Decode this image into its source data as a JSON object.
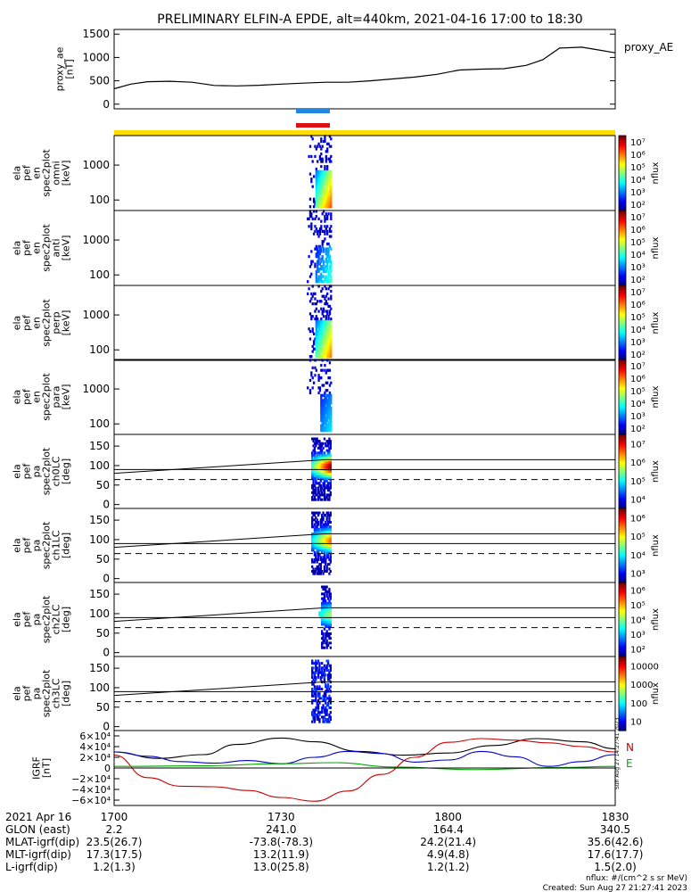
{
  "title": "PRELIMINARY ELFIN-A EPDE, alt=440km, 2021-04-16 17:00 to 18:30",
  "time_range": [
    "17:00",
    "18:30"
  ],
  "chart_data": [
    {
      "type": "line",
      "id": "proxy_ae",
      "ylabel": "proxy_ae\n[nT]",
      "right_label": "proxy_AE",
      "ylim": [
        -100,
        1600
      ],
      "yticks": [
        0,
        500,
        1000,
        1500
      ],
      "x": [
        0,
        3,
        6,
        10,
        14,
        18,
        22,
        26,
        30,
        34,
        38,
        42,
        46,
        50,
        54,
        58,
        62,
        66,
        70,
        74,
        77,
        80,
        84,
        87,
        90
      ],
      "values": [
        330,
        430,
        480,
        490,
        470,
        400,
        390,
        405,
        430,
        450,
        470,
        470,
        500,
        540,
        580,
        640,
        730,
        750,
        760,
        830,
        950,
        1200,
        1220,
        1160,
        1100
      ]
    },
    {
      "type": "heatmap",
      "id": "en_omni",
      "ylabel": "ela\npef\nen\nspec2plot\nomni\n[keV]",
      "yticks": [
        "100",
        "1000"
      ],
      "colorbar": {
        "label": "nflux",
        "ticks": [
          "10²",
          "10³",
          "10⁴",
          "10⁵",
          "10⁶",
          "10⁷"
        ]
      }
    },
    {
      "type": "heatmap",
      "id": "en_anti",
      "ylabel": "ela\npef\nen\nspec2plot\nanti\n[keV]",
      "yticks": [
        "100",
        "1000"
      ],
      "colorbar": {
        "label": "nflux",
        "ticks": [
          "10²",
          "10³",
          "10⁴",
          "10⁵",
          "10⁶",
          "10⁷"
        ]
      }
    },
    {
      "type": "heatmap",
      "id": "en_perp",
      "ylabel": "ela\npef\nen\nspec2plot\nperp\n[keV]",
      "yticks": [
        "100",
        "1000"
      ],
      "colorbar": {
        "label": "nflux",
        "ticks": [
          "10²",
          "10³",
          "10⁴",
          "10⁵",
          "10⁶",
          "10⁷"
        ]
      }
    },
    {
      "type": "heatmap",
      "id": "en_para",
      "ylabel": "ela\npef\nen\nspec2plot\npara\n[keV]",
      "yticks": [
        "100",
        "1000"
      ],
      "colorbar": {
        "label": "nflux",
        "ticks": [
          "10²",
          "10³",
          "10⁴",
          "10⁵",
          "10⁶",
          "10⁷"
        ]
      }
    },
    {
      "type": "heatmap",
      "id": "pa_ch0",
      "ylabel": "ela\npef\npa\nspec2plot\nch0LC\n[deg]",
      "yticks": [
        "0",
        "50",
        "100",
        "150"
      ],
      "colorbar": {
        "label": "nflux",
        "ticks": [
          "10⁴",
          "10⁵",
          "10⁶",
          "10⁷"
        ]
      }
    },
    {
      "type": "heatmap",
      "id": "pa_ch1",
      "ylabel": "ela\npef\npa\nspec2plot\nch1LC\n[deg]",
      "yticks": [
        "0",
        "50",
        "100",
        "150"
      ],
      "colorbar": {
        "label": "nflux",
        "ticks": [
          "10³",
          "10⁴",
          "10⁵",
          "10⁶"
        ]
      }
    },
    {
      "type": "heatmap",
      "id": "pa_ch2",
      "ylabel": "ela\npef\npa\nspec2plot\nch2LC\n[deg]",
      "yticks": [
        "0",
        "50",
        "100",
        "150"
      ],
      "colorbar": {
        "label": "nflux",
        "ticks": [
          "10²",
          "10³",
          "10⁴",
          "10⁵",
          "10⁶"
        ]
      }
    },
    {
      "type": "heatmap",
      "id": "pa_ch3",
      "ylabel": "ela\npef\npa\nspec2plot\nch3LC\n[deg]",
      "yticks": [
        "0",
        "50",
        "100",
        "150"
      ],
      "colorbar": {
        "label": "nflux",
        "ticks": [
          "10",
          "100",
          "1000",
          "10000"
        ]
      }
    },
    {
      "type": "line",
      "id": "igrf",
      "ylabel": "IGRF\n[nT]",
      "yticks": [
        "−6×10⁴",
        "−4×10⁴",
        "−2×10⁴",
        "0",
        "2×10⁴",
        "4×10⁴",
        "6×10⁴"
      ],
      "ylim": [
        -70000,
        70000
      ],
      "legend": [
        "N",
        "E"
      ],
      "series": [
        {
          "color": "#000000",
          "x": [
            0,
            8,
            16,
            22,
            30,
            36,
            44,
            52,
            60,
            68,
            76,
            84,
            90
          ],
          "values": [
            30000,
            18000,
            25000,
            44000,
            56000,
            49000,
            31000,
            24000,
            28000,
            42000,
            55000,
            49000,
            36000
          ]
        },
        {
          "color": "#0000cc",
          "x": [
            0,
            6,
            12,
            18,
            24,
            30,
            36,
            42,
            48,
            54,
            60,
            66,
            72,
            78,
            84,
            90
          ],
          "values": [
            30000,
            22000,
            12000,
            9000,
            14000,
            8000,
            20000,
            31000,
            27000,
            11000,
            15000,
            31000,
            21000,
            3000,
            12000,
            25000
          ]
        },
        {
          "color": "#cc0000",
          "x": [
            0,
            6,
            12,
            18,
            24,
            30,
            36,
            42,
            48,
            54,
            60,
            66,
            72,
            78,
            84,
            90
          ],
          "values": [
            24000,
            -18000,
            -34000,
            -35000,
            -42000,
            -55000,
            -62000,
            -43000,
            -12000,
            20000,
            48000,
            55000,
            52000,
            47000,
            40000,
            30000
          ]
        },
        {
          "color": "#00aa00",
          "x": [
            0,
            15,
            30,
            40,
            50,
            65,
            80,
            90
          ],
          "values": [
            3000,
            4000,
            8000,
            10000,
            2000,
            -3000,
            1000,
            3000
          ]
        }
      ]
    }
  ],
  "orbit_bars": {
    "blue_color": "#2288dd",
    "red_color": "#dd1111",
    "yellow_color": "#ffdd00"
  },
  "footer": {
    "date_label": "2021 Apr 16",
    "x_ticks": [
      "1700",
      "1730",
      "1800",
      "1830"
    ],
    "rows": [
      {
        "label": "GLON (east)",
        "values": [
          "2.2",
          "241.0",
          "164.4",
          "340.5"
        ]
      },
      {
        "label": "MLAT-igrf(dip)",
        "values": [
          "23.5(26.7)",
          "-73.8(-78.3)",
          "24.2(21.4)",
          "35.6(42.6)"
        ]
      },
      {
        "label": "MLT-igrf(dip)",
        "values": [
          "17.3(17.5)",
          "13.2(11.9)",
          "4.9(4.8)",
          "17.6(17.7)"
        ]
      },
      {
        "label": "L-igrf(dip)",
        "values": [
          "1.2(1.3)",
          "13.0(25.8)",
          "1.2(1.2)",
          "1.5(2.0)"
        ]
      }
    ],
    "units_note": "nflux: #/(cm^2 s sr MeV)",
    "created": "Created: Sun Aug 27 21:27:41 2023",
    "side_stamp": "Sun Aug 27 14:27:41 2023"
  }
}
